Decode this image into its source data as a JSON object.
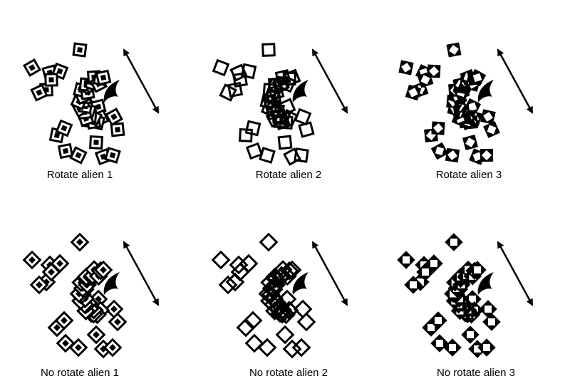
{
  "colors": {
    "ink": "#000000",
    "paper": "#ffffff"
  },
  "shape_types": {
    "type1": "hollow square with small filled center square",
    "type2": "hollow square",
    "type3": "filled square with white inner square"
  },
  "panels": [
    {
      "caption": "Rotate alien 1",
      "rotated": true,
      "alien": 1
    },
    {
      "caption": "Rotate alien 2",
      "rotated": true,
      "alien": 2
    },
    {
      "caption": "Rotate alien 3",
      "rotated": true,
      "alien": 3
    },
    {
      "caption": "No rotate alien 1",
      "rotated": false,
      "alien": 1
    },
    {
      "caption": "No rotate alien 2",
      "rotated": false,
      "alien": 2
    },
    {
      "caption": "No rotate alien 3",
      "rotated": false,
      "alien": 3
    }
  ]
}
